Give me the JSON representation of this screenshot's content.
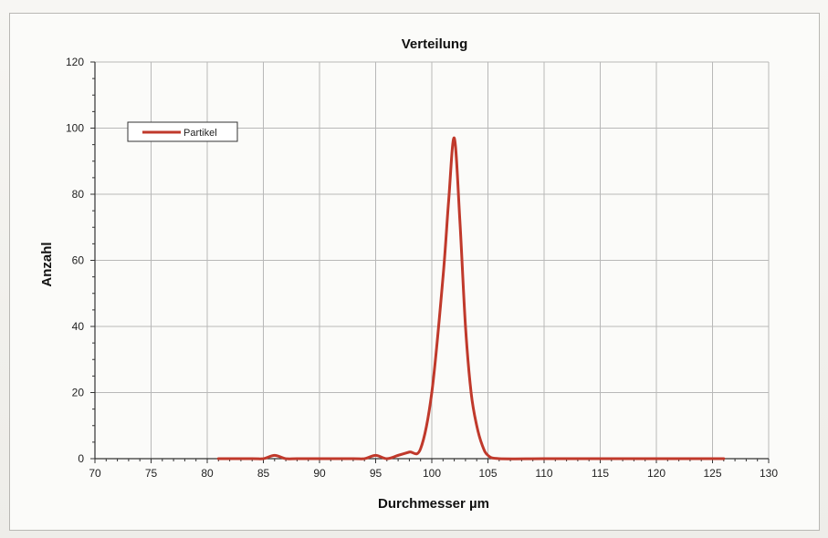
{
  "chart_data": {
    "type": "line",
    "title": "Verteilung",
    "xlabel": "Durchmesser µm",
    "ylabel": "Anzahl",
    "xlim": [
      70,
      130
    ],
    "ylim": [
      0,
      120
    ],
    "xticks": [
      70,
      75,
      80,
      85,
      90,
      95,
      100,
      105,
      110,
      115,
      120,
      125,
      130
    ],
    "yticks": [
      0,
      20,
      40,
      60,
      80,
      100,
      120
    ],
    "grid": true,
    "legend_position": "top-left",
    "series": [
      {
        "name": "Partikel",
        "color": "#c0392b",
        "x": [
          81,
          84,
          85,
          86,
          87,
          88,
          90,
          93,
          94,
          95,
          96,
          97,
          98,
          99,
          100,
          101,
          101.5,
          102,
          102.5,
          103,
          103.5,
          104,
          104.5,
          105,
          106,
          110,
          115,
          120,
          126
        ],
        "y": [
          0,
          0,
          0,
          1,
          0,
          0,
          0,
          0,
          0,
          1,
          0,
          1,
          2,
          3,
          20,
          55,
          78,
          97,
          72,
          40,
          20,
          10,
          4,
          1,
          0,
          0,
          0,
          0,
          0
        ]
      }
    ]
  }
}
